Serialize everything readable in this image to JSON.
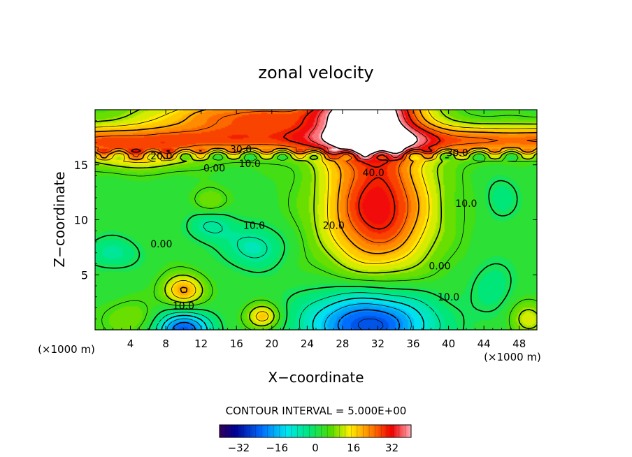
{
  "chart_data": {
    "type": "heatmap",
    "title": "zonal velocity",
    "xlabel": "X−coordinate",
    "ylabel": "Z−coordinate",
    "x_unit_left": "(×1000 m)",
    "x_unit_right": "(×1000 m)",
    "xlim": [
      0,
      50
    ],
    "ylim": [
      0,
      20
    ],
    "x_ticks": [
      4,
      8,
      12,
      16,
      20,
      24,
      28,
      32,
      36,
      40,
      44,
      48
    ],
    "x_tick_labels": [
      "4",
      "8",
      "12",
      "16",
      "20",
      "24",
      "28",
      "32",
      "36",
      "40",
      "44",
      "48"
    ],
    "y_ticks": [
      5,
      10,
      15
    ],
    "y_tick_labels": [
      "5",
      "10",
      "15"
    ],
    "contour_interval_text": "CONTOUR INTERVAL = 5.000E+00",
    "contour_interval": 5,
    "contour_labels": [
      {
        "text": "30.0",
        "x": 16.5,
        "y": 16.4
      },
      {
        "text": "20.0",
        "x": 7.5,
        "y": 15.8
      },
      {
        "text": "10.0",
        "x": 17.5,
        "y": 15.1
      },
      {
        "text": "0.00",
        "x": 13.5,
        "y": 14.7
      },
      {
        "text": "40.0",
        "x": 31.5,
        "y": 14.3
      },
      {
        "text": "30.0",
        "x": 41.0,
        "y": 16.1
      },
      {
        "text": "10.0",
        "x": 42.0,
        "y": 11.5
      },
      {
        "text": "20.0",
        "x": 27.0,
        "y": 9.5
      },
      {
        "text": "10.0",
        "x": 18.0,
        "y": 9.5
      },
      {
        "text": "0.00",
        "x": 7.5,
        "y": 7.8
      },
      {
        "text": "0.00",
        "x": 39.0,
        "y": 5.8
      },
      {
        "text": "10.0",
        "x": 40.0,
        "y": 3.0
      },
      {
        "text": "10.0",
        "x": 10.0,
        "y": 2.2
      }
    ],
    "colorbar": {
      "range": [
        -40,
        40
      ],
      "ticks": [
        -32,
        -16,
        0,
        16,
        32
      ],
      "tick_labels": [
        "−32",
        "−16",
        "0",
        "16",
        "32"
      ]
    },
    "features": [
      {
        "x": 31,
        "z": 20,
        "value": 42,
        "sx": 5.5,
        "sz": 4.0
      },
      {
        "x": 32,
        "z": 11,
        "value": 30,
        "sx": 6.0,
        "sz": 5.5
      },
      {
        "x": 18,
        "z": 19.5,
        "value": 22,
        "sx": 12.0,
        "sz": 1.6
      },
      {
        "x": 5,
        "z": 15.7,
        "value": 12,
        "sx": 6.0,
        "sz": 1.2
      },
      {
        "x": 31,
        "z": 0.5,
        "value": -30,
        "sx": 7.0,
        "sz": 3.0
      },
      {
        "x": 10,
        "z": 0,
        "value": -28,
        "sx": 3.0,
        "sz": 1.6
      },
      {
        "x": 10,
        "z": 3.6,
        "value": 18,
        "sx": 2.2,
        "sz": 1.4
      },
      {
        "x": 19,
        "z": 1.2,
        "value": 16,
        "sx": 1.8,
        "sz": 1.1
      },
      {
        "x": 13,
        "z": 11.6,
        "value": 7,
        "sx": 1.8,
        "sz": 1.2
      },
      {
        "x": 13,
        "z": 9.5,
        "value": -9,
        "sx": 2.5,
        "sz": 1.5
      },
      {
        "x": 2,
        "z": 7,
        "value": -8,
        "sx": 3.0,
        "sz": 1.5
      },
      {
        "x": 18,
        "z": 7.5,
        "value": -10,
        "sx": 3.5,
        "sz": 2.0
      },
      {
        "x": 46,
        "z": 12,
        "value": -6,
        "sx": 2.0,
        "sz": 2.0
      },
      {
        "x": 45,
        "z": 4,
        "value": -6,
        "sx": 2.5,
        "sz": 2.5
      },
      {
        "x": 4,
        "z": 1,
        "value": 6,
        "sx": 3.0,
        "sz": 1.5
      },
      {
        "x": 49,
        "z": 1,
        "value": 10,
        "sx": 2.0,
        "sz": 1.5
      }
    ],
    "mask_above": 40,
    "grid": false,
    "legend": "colorbar-bottom"
  }
}
